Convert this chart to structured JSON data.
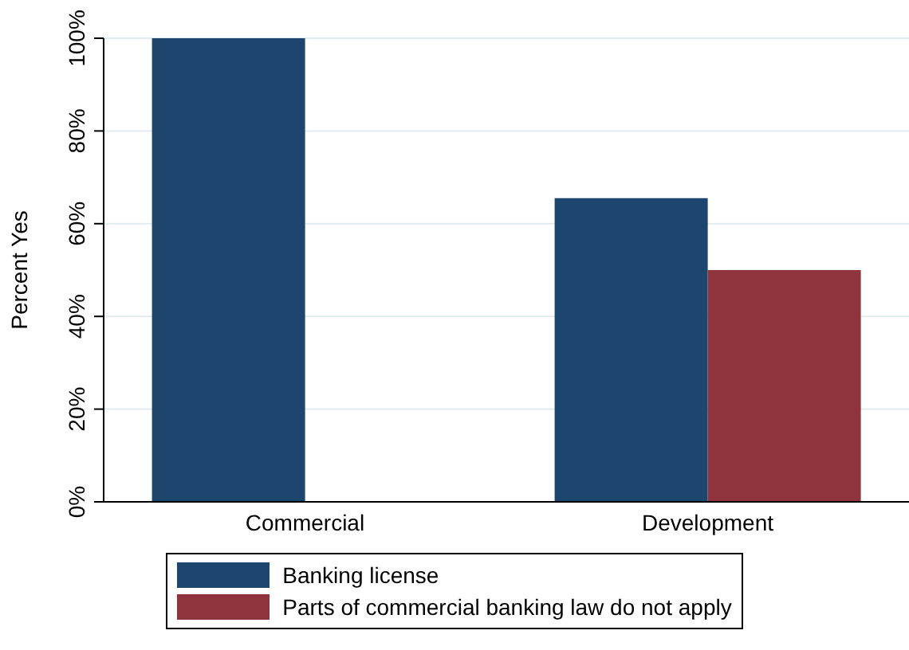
{
  "chart_data": {
    "type": "bar",
    "ylabel": "Percent Yes",
    "categories": [
      "Commercial",
      "Development"
    ],
    "series": [
      {
        "name": "Banking license",
        "color": "#1c466e",
        "values": [
          100,
          65.5
        ]
      },
      {
        "name": "Parts of commercial banking law do not apply",
        "color": "#8f343c",
        "values": [
          0,
          50
        ]
      }
    ],
    "ylim": [
      0,
      100
    ],
    "yticks": [
      {
        "value": 0,
        "label": "0%"
      },
      {
        "value": 20,
        "label": "20%"
      },
      {
        "value": 40,
        "label": "40%"
      },
      {
        "value": 60,
        "label": "60%"
      },
      {
        "value": 80,
        "label": "80%"
      },
      {
        "value": 100,
        "label": "100%"
      }
    ],
    "grid": "y",
    "legend": "bottom"
  }
}
